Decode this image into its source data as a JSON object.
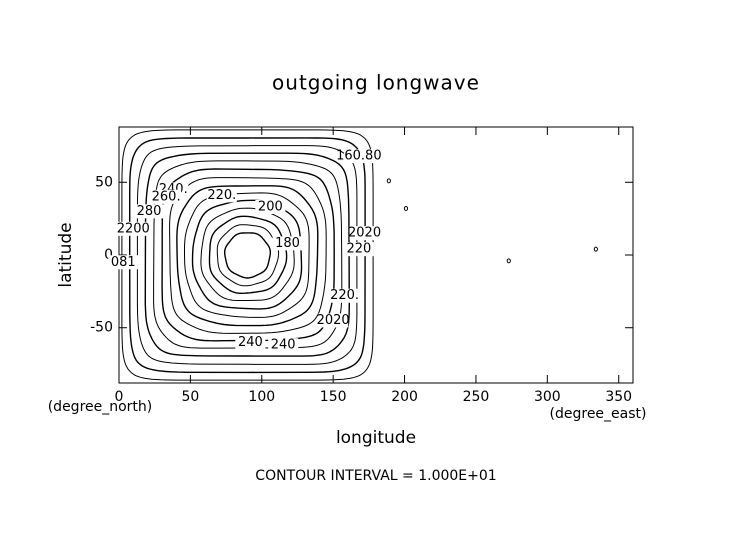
{
  "chart_data": {
    "type": "contour",
    "title": "outgoing longwave",
    "xlabel": "longitude",
    "ylabel": "latitude",
    "xunit": "(degree_east)",
    "yunit": "(degree_north)",
    "footer": "CONTOUR INTERVAL = 1.000E+01",
    "xlim": [
      0,
      360
    ],
    "ylim": [
      -88,
      88
    ],
    "xticks": [
      0,
      50,
      100,
      150,
      200,
      250,
      300,
      350
    ],
    "yticks": [
      -50,
      0,
      50
    ],
    "center": [
      90,
      0
    ],
    "levels": [
      160,
      170,
      180,
      190,
      200,
      210,
      220,
      230,
      240,
      250,
      260,
      270,
      280,
      290
    ],
    "contour_labels": [
      {
        "label": "220.",
        "lon": 72,
        "lat": 41
      },
      {
        "label": "200",
        "lon": 106,
        "lat": 33
      },
      {
        "label": "240.",
        "lon": 38,
        "lat": 45
      },
      {
        "label": "260.",
        "lon": 33,
        "lat": 40
      },
      {
        "label": "280",
        "lon": 21,
        "lat": 30
      },
      {
        "label": "2200",
        "lon": 10,
        "lat": 18
      },
      {
        "label": "180",
        "lon": 118,
        "lat": 8
      },
      {
        "label": "220",
        "lon": 168,
        "lat": 4
      },
      {
        "label": "2020",
        "lon": 172,
        "lat": 15
      },
      {
        "label": "160.80",
        "lon": 168,
        "lat": 68
      },
      {
        "label": "220.",
        "lon": 158,
        "lat": -28
      },
      {
        "label": "2020",
        "lon": 150,
        "lat": -45
      },
      {
        "label": "240",
        "lon": 92,
        "lat": -60
      },
      {
        "label": "240",
        "lon": 115,
        "lat": -62
      },
      {
        "label": "081",
        "lon": 3,
        "lat": -5
      }
    ],
    "small_contours": [
      [
        189,
        51
      ],
      [
        201,
        32
      ],
      [
        273,
        -4
      ],
      [
        334,
        4
      ]
    ]
  }
}
